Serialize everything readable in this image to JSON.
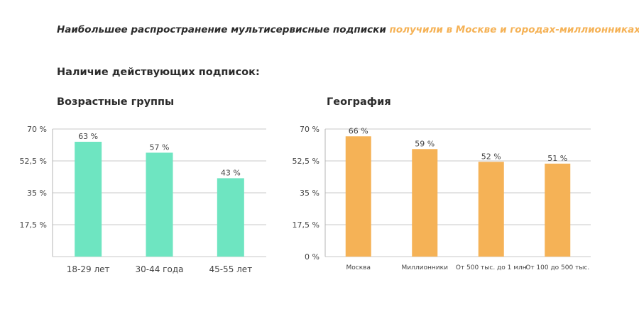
{
  "headline": {
    "main": "Наибольшее распространение мультисервисные подписки",
    "accent": "получили в Москве и городах-миллионниках"
  },
  "subhead": "Наличие действующих подписок:",
  "colors": {
    "accent": "#f5b256",
    "age_bar": "#6ee5c1",
    "geo_bar": "#f5b256",
    "grid": "#c8c8c8"
  },
  "chart_data": [
    {
      "type": "bar",
      "title": "Возрастные группы",
      "categories": [
        "18-29 лет",
        "30-44 года",
        "45-55 лет"
      ],
      "values": [
        63,
        57,
        43
      ],
      "value_labels": [
        "63 %",
        "57 %",
        "43 %"
      ],
      "ylim": [
        0,
        70
      ],
      "yticks": [
        0,
        17.5,
        35,
        52.5,
        70
      ],
      "ytick_labels": [
        "",
        "17,5 %",
        "35 %",
        "52,5 %",
        "70 %"
      ],
      "grid": true,
      "color": "#6ee5c1"
    },
    {
      "type": "bar",
      "title": "География",
      "categories": [
        "Москва",
        "Миллионники",
        "От 500 тыс. до 1 млн",
        "От 100 до 500 тыс."
      ],
      "values": [
        66,
        59,
        52,
        51
      ],
      "value_labels": [
        "66 %",
        "59 %",
        "52 %",
        "51 %"
      ],
      "ylim": [
        0,
        70
      ],
      "yticks": [
        0,
        17.5,
        35,
        52.5,
        70
      ],
      "ytick_labels": [
        "0 %",
        "17,5 %",
        "35 %",
        "52,5 %",
        "70 %"
      ],
      "grid": true,
      "color": "#f5b256"
    }
  ]
}
